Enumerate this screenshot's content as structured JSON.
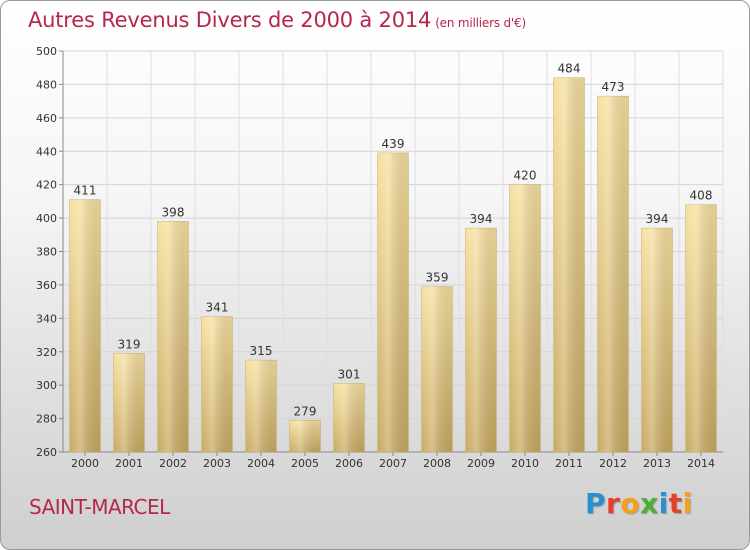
{
  "header": {
    "title": "Autres Revenus Divers de 2000 à 2014",
    "unit": "(en milliers d'€)"
  },
  "footer": {
    "place": "SAINT-MARCEL",
    "brand": [
      "P",
      "r",
      "o",
      "x",
      "i",
      "t",
      "i"
    ],
    "brand_colors": [
      "#2a8fd1",
      "#e2402c",
      "#f2a21c",
      "#4cae36",
      "#2a8fd1",
      "#e2402c",
      "#f2a21c"
    ]
  },
  "chart_data": {
    "type": "bar",
    "categories": [
      "2000",
      "2001",
      "2002",
      "2003",
      "2004",
      "2005",
      "2006",
      "2007",
      "2008",
      "2009",
      "2010",
      "2011",
      "2012",
      "2013",
      "2014"
    ],
    "values": [
      411,
      319,
      398,
      341,
      315,
      279,
      301,
      439,
      359,
      394,
      420,
      484,
      473,
      394,
      408
    ],
    "title": "Autres Revenus Divers de 2000 à 2014",
    "ylim": [
      260,
      500
    ],
    "yticks": [
      260,
      280,
      300,
      320,
      340,
      360,
      380,
      400,
      420,
      440,
      460,
      480,
      500
    ],
    "grid": true,
    "bar_color": "#e6c878",
    "label_color": "#333333"
  }
}
